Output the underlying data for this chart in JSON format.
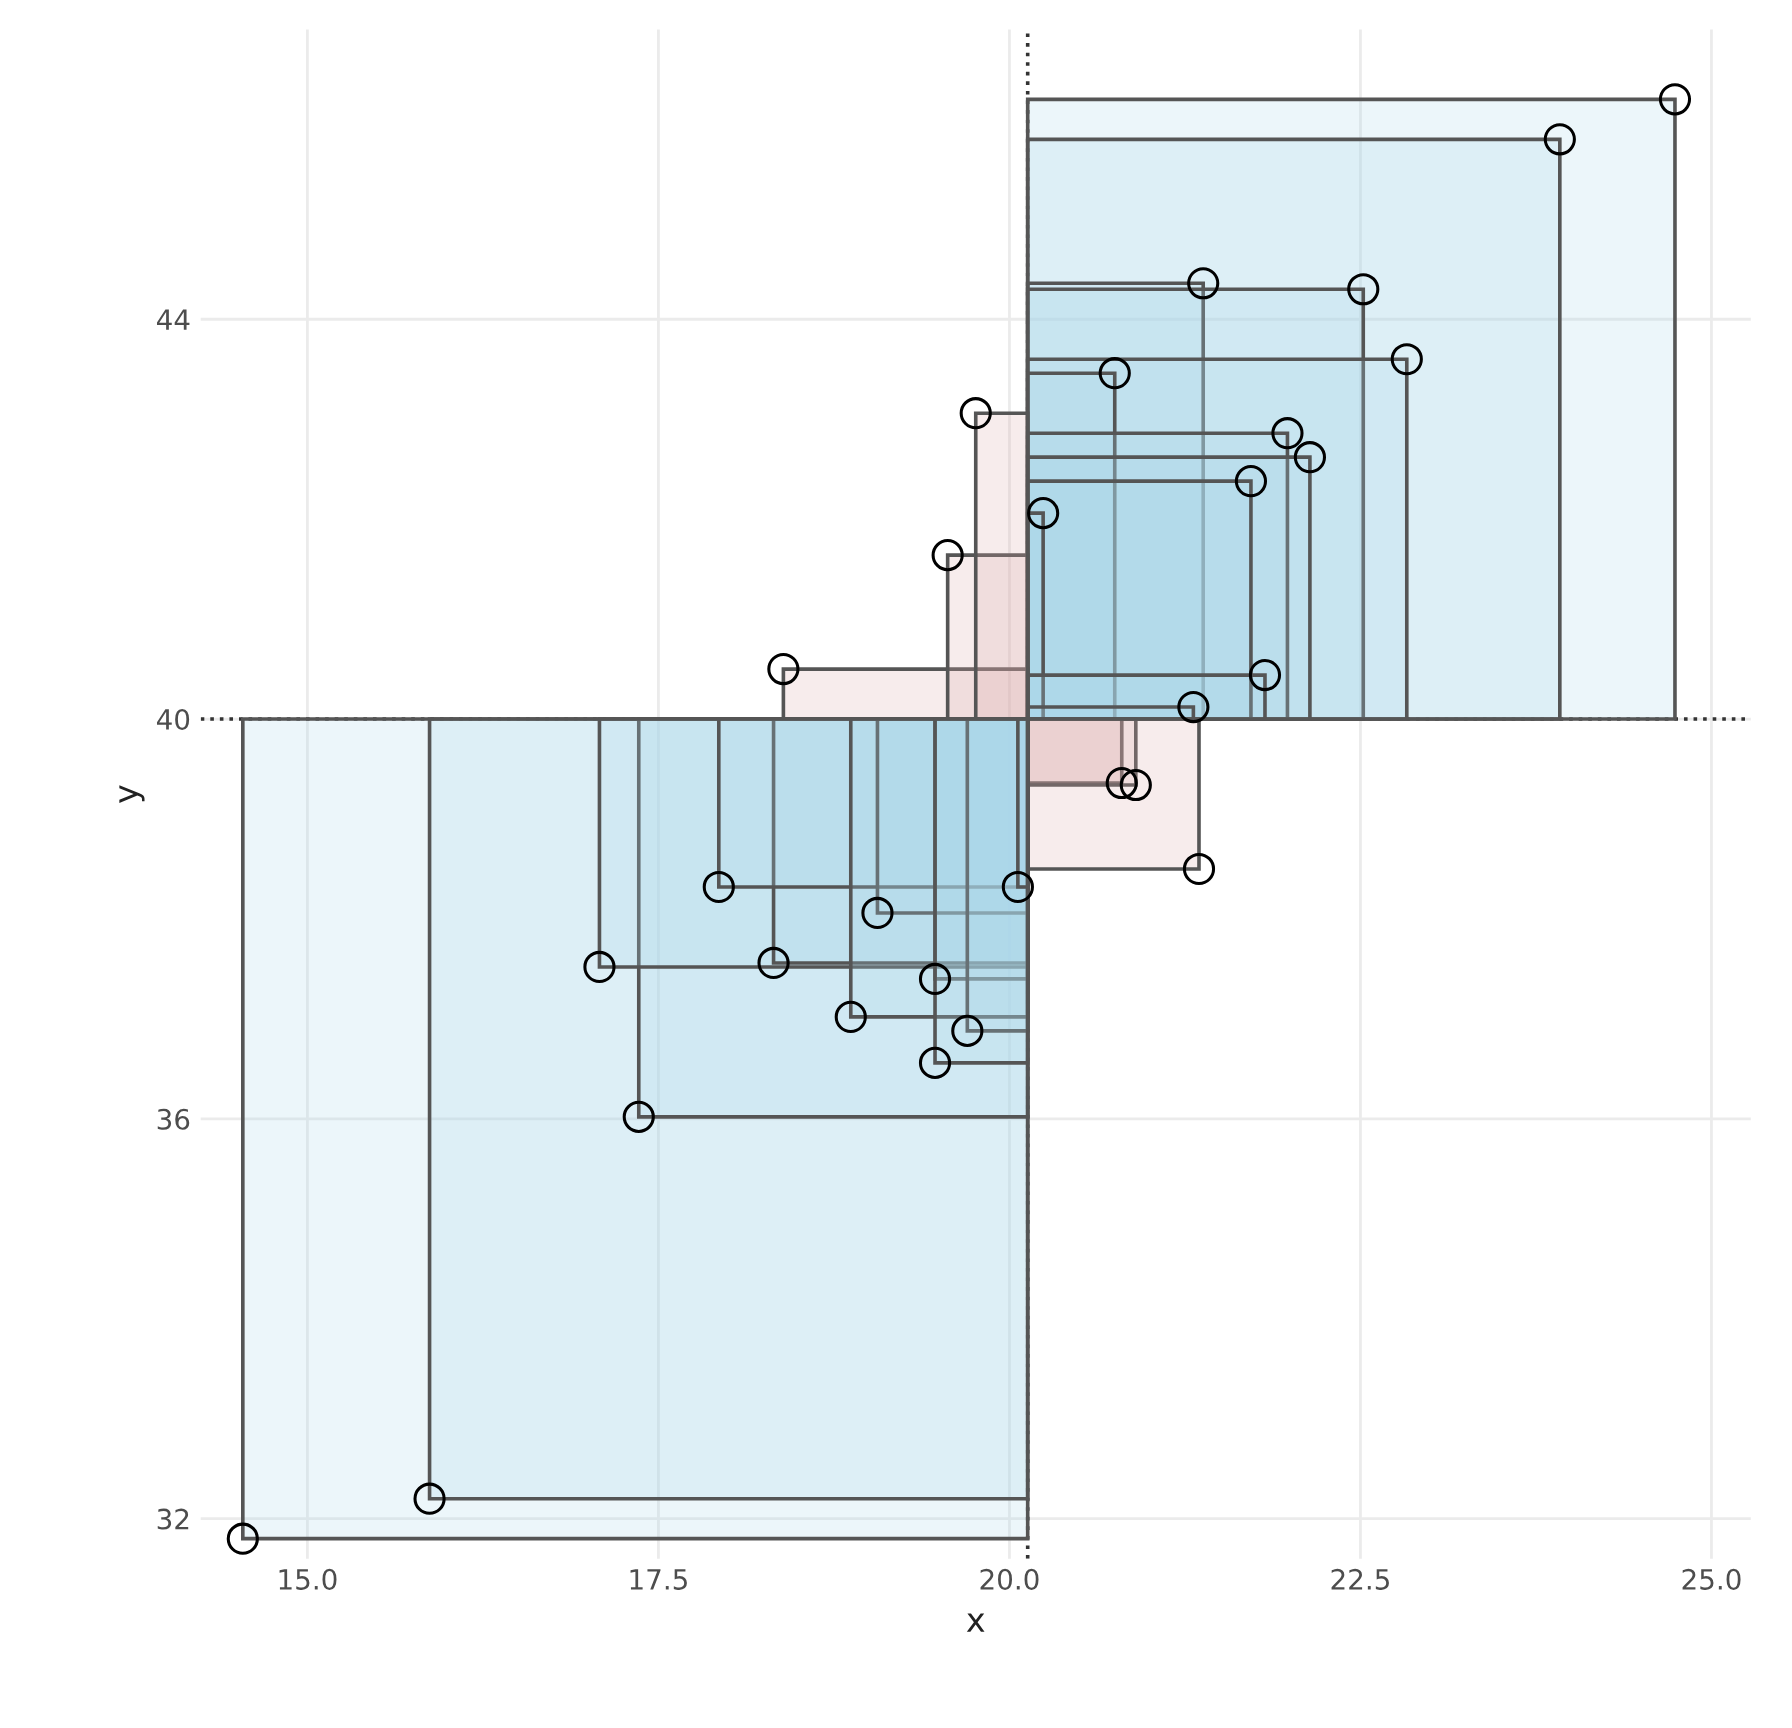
{
  "chart_data": {
    "type": "scatter",
    "xlabel": "x",
    "ylabel": "y",
    "xlim": [
      14.24,
      25.28
    ],
    "ylim": [
      31.6,
      46.9
    ],
    "xticks": [
      {
        "value": 15,
        "label": "15.0"
      },
      {
        "value": 17.5,
        "label": "17.5"
      },
      {
        "value": 20,
        "label": "20.0"
      },
      {
        "value": 22.5,
        "label": "22.5"
      },
      {
        "value": 25,
        "label": "25.0"
      }
    ],
    "yticks": [
      32,
      36,
      40,
      44
    ],
    "grid": true,
    "marker": "circle",
    "ref_lines": [
      {
        "axis": "x",
        "value": 20.13,
        "line_style": "dotted",
        "color": "#333333"
      },
      {
        "axis": "y",
        "value": 40,
        "line_style": "dotted",
        "color": "#333333"
      }
    ],
    "series": [
      {
        "color": "#000000",
        "x": [
          24.74,
          23.92,
          21.38,
          22.52,
          22.83,
          20.75,
          21.98,
          22.14,
          21.72,
          20.24,
          21.82,
          21.31,
          18.39,
          19.56,
          19.76,
          20.8,
          20.9,
          21.35,
          14.54,
          15.87,
          17.36,
          17.08,
          18.32,
          17.93,
          19.06,
          19.47,
          18.87,
          19.7,
          19.47,
          20.06
        ],
        "values": [
          46.2,
          45.8,
          44.36,
          44.3,
          43.6,
          43.46,
          42.86,
          42.62,
          42.38,
          42.06,
          40.44,
          40.12,
          40.5,
          41.64,
          43.06,
          39.36,
          39.34,
          38.5,
          31.8,
          32.2,
          36.02,
          37.52,
          37.56,
          38.32,
          38.06,
          37.4,
          37.02,
          36.88,
          36.56,
          38.32
        ]
      }
    ]
  }
}
